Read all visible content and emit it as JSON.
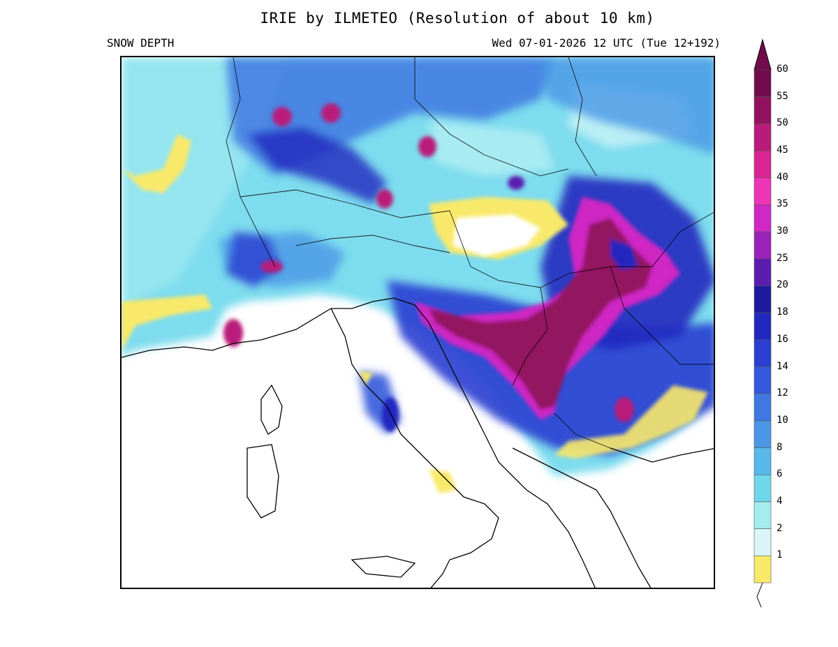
{
  "header": {
    "title": "IRIE by ILMETEO (Resolution of about 10 km)",
    "variable": "SNOW DEPTH",
    "valid_time": "Wed 07-01-2026 12 UTC (Tue 12+192)"
  },
  "legend": {
    "levels": [
      {
        "label": "1",
        "color": "#f8e96a"
      },
      {
        "label": "2",
        "color": "#d9f5f8"
      },
      {
        "label": "4",
        "color": "#a4ecf0"
      },
      {
        "label": "6",
        "color": "#6fd7ea"
      },
      {
        "label": "8",
        "color": "#58b8ea"
      },
      {
        "label": "10",
        "color": "#4a97e6"
      },
      {
        "label": "12",
        "color": "#3f78e2"
      },
      {
        "label": "14",
        "color": "#3459dc"
      },
      {
        "label": "16",
        "color": "#2a3fd1"
      },
      {
        "label": "18",
        "color": "#2128bf"
      },
      {
        "label": "20",
        "color": "#1c1b9e"
      },
      {
        "label": "25",
        "color": "#5c1cb0"
      },
      {
        "label": "30",
        "color": "#9a22b8"
      },
      {
        "label": "35",
        "color": "#cf28c4"
      },
      {
        "label": "40",
        "color": "#ee34b6"
      },
      {
        "label": "45",
        "color": "#d92592"
      },
      {
        "label": "50",
        "color": "#b91b7a"
      },
      {
        "label": "55",
        "color": "#931260"
      },
      {
        "label": "60",
        "color": "#720b4c"
      }
    ]
  },
  "colors": {
    "sea": "#ffffff",
    "coast": "#000000"
  }
}
